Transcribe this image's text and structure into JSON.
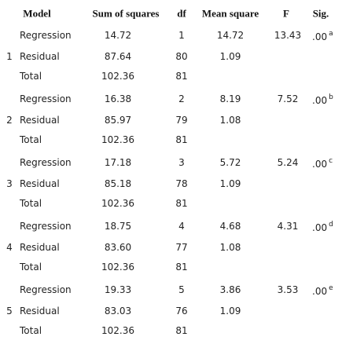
{
  "table": {
    "columns": [
      "Model",
      "Sum of squares",
      "df",
      "Mean square",
      "F",
      "Sig."
    ],
    "models": [
      {
        "number": "1",
        "rows": [
          {
            "source": "Regression",
            "ss": "14.72",
            "df": "1",
            "ms": "14.72",
            "f": "13.43",
            "sig": ".00",
            "note": "a"
          },
          {
            "source": "Residual",
            "ss": "87.64",
            "df": "80",
            "ms": "1.09"
          },
          {
            "source": "Total",
            "ss": "102.36",
            "df": "81"
          }
        ]
      },
      {
        "number": "2",
        "rows": [
          {
            "source": "Regression",
            "ss": "16.38",
            "df": "2",
            "ms": "8.19",
            "f": "7.52",
            "sig": ".00",
            "note": "b"
          },
          {
            "source": "Residual",
            "ss": "85.97",
            "df": "79",
            "ms": "1.08"
          },
          {
            "source": "Total",
            "ss": "102.36",
            "df": "81"
          }
        ]
      },
      {
        "number": "3",
        "rows": [
          {
            "source": "Regression",
            "ss": "17.18",
            "df": "3",
            "ms": "5.72",
            "f": "5.24",
            "sig": ".00",
            "note": "c"
          },
          {
            "source": "Residual",
            "ss": "85.18",
            "df": "78",
            "ms": "1.09"
          },
          {
            "source": "Total",
            "ss": "102.36",
            "df": "81"
          }
        ]
      },
      {
        "number": "4",
        "rows": [
          {
            "source": "Regression",
            "ss": "18.75",
            "df": "4",
            "ms": "4.68",
            "f": "4.31",
            "sig": ".00",
            "note": "d"
          },
          {
            "source": "Residual",
            "ss": "83.60",
            "df": "77",
            "ms": "1.08"
          },
          {
            "source": "Total",
            "ss": "102.36",
            "df": "81"
          }
        ]
      },
      {
        "number": "5",
        "rows": [
          {
            "source": "Regression",
            "ss": "19.33",
            "df": "5",
            "ms": "3.86",
            "f": "3.53",
            "sig": ".00",
            "note": "e"
          },
          {
            "source": "Residual",
            "ss": "83.03",
            "df": "76",
            "ms": "1.09"
          },
          {
            "source": "Total",
            "ss": "102.36",
            "df": "81"
          }
        ]
      }
    ]
  }
}
